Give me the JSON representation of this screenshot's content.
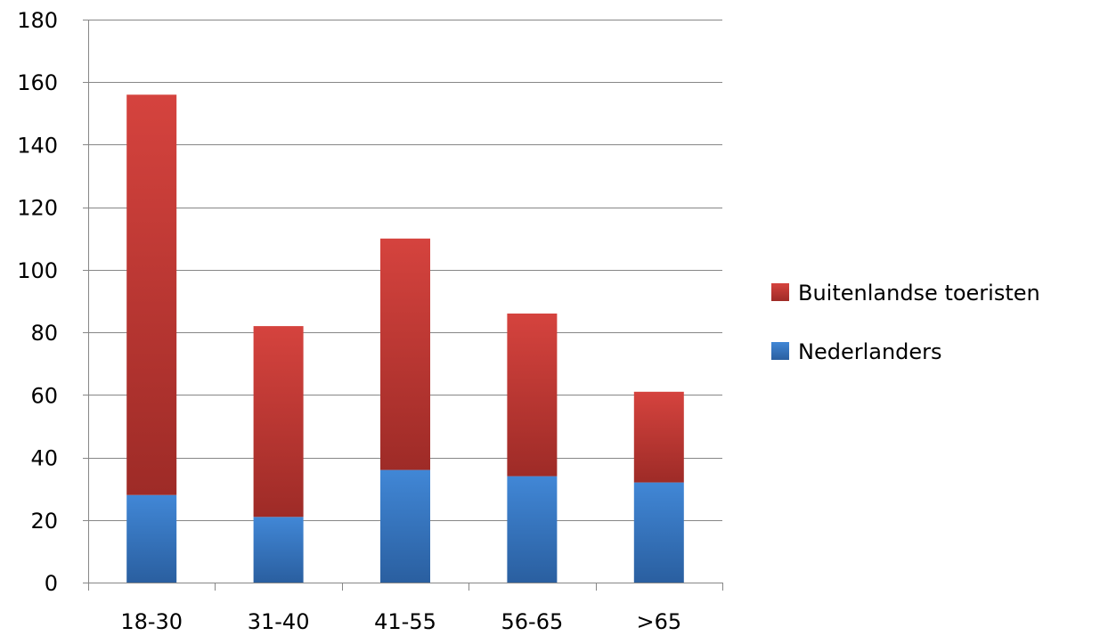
{
  "chart_data": {
    "type": "bar",
    "stacked": true,
    "title": "",
    "xlabel": "",
    "ylabel": "",
    "categories": [
      "18-30",
      "31-40",
      "41-55",
      "56-65",
      ">65"
    ],
    "series": [
      {
        "name": "Nederlanders",
        "values": [
          28,
          21,
          36,
          34,
          32
        ],
        "color": "#3b7dd0"
      },
      {
        "name": "Buitenlandse toeristen",
        "values": [
          128,
          61,
          74,
          52,
          29
        ],
        "color": "#c83a36"
      }
    ],
    "ylim": [
      0,
      180
    ],
    "yticks": [
      0,
      20,
      40,
      60,
      80,
      100,
      120,
      140,
      160,
      180
    ],
    "grid": true,
    "legend_position": "right",
    "legend_order": [
      "Buitenlandse toeristen",
      "Nederlanders"
    ]
  }
}
